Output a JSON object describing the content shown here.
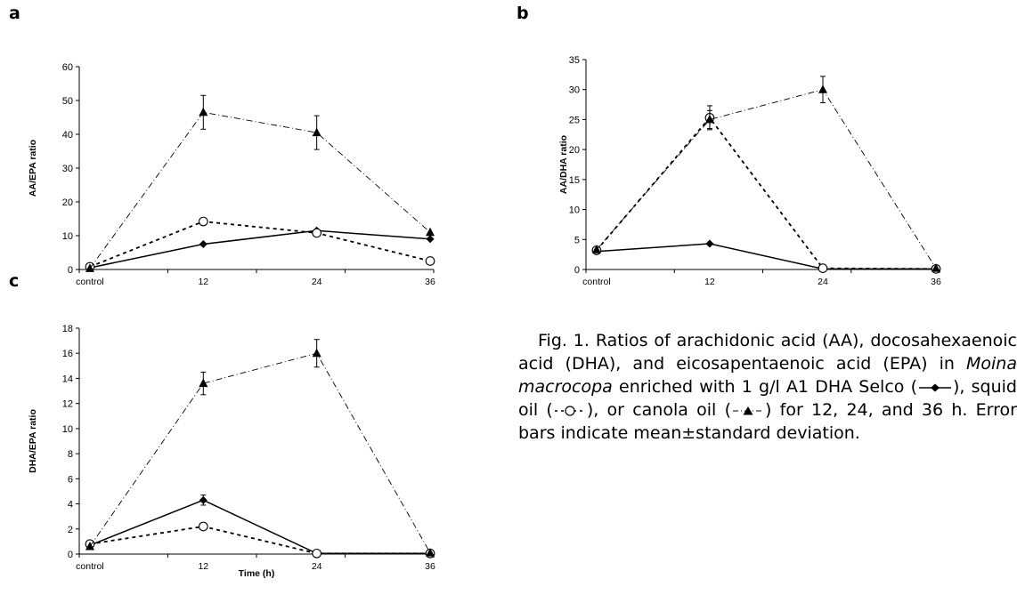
{
  "panels": [
    {
      "letter": "a",
      "chart_data": {
        "type": "line",
        "categories": [
          "control",
          "12",
          "24",
          "36"
        ],
        "ylabel": "AA/EPA ratio",
        "xlabel": "",
        "ylim": [
          0,
          60
        ],
        "yticks": [
          "0",
          "10",
          "20",
          "30",
          "40",
          "50",
          "60"
        ],
        "series": [
          {
            "marker": "diamond",
            "line": "solid",
            "values": [
              0.5,
              7.5,
              11.5,
              9
            ],
            "errors": [
              0,
              0,
              0,
              0
            ]
          },
          {
            "marker": "circle",
            "line": "dash",
            "values": [
              0.8,
              14.2,
              10.8,
              2.5
            ],
            "errors": [
              0,
              0,
              0,
              0
            ]
          },
          {
            "marker": "triangle",
            "line": "dashdot",
            "values": [
              0.3,
              46.5,
              40.5,
              11
            ],
            "errors": [
              0,
              5,
              5,
              0
            ]
          }
        ]
      }
    },
    {
      "letter": "b",
      "chart_data": {
        "type": "line",
        "categories": [
          "control",
          "12",
          "24",
          "36"
        ],
        "ylabel": "AA/DHA ratio",
        "xlabel": "",
        "ylim": [
          0,
          35
        ],
        "yticks": [
          "0",
          "5",
          "10",
          "15",
          "20",
          "25",
          "30",
          "35"
        ],
        "series": [
          {
            "marker": "diamond",
            "line": "solid",
            "values": [
              3.0,
              4.3,
              0.1,
              0.1
            ],
            "errors": [
              0,
              0,
              0,
              0
            ]
          },
          {
            "marker": "circle",
            "line": "dash",
            "values": [
              3.2,
              25.3,
              0.2,
              0.1
            ],
            "errors": [
              0,
              2,
              0,
              0
            ]
          },
          {
            "marker": "triangle",
            "line": "dashdot",
            "values": [
              3.3,
              25.0,
              30.0,
              0.2
            ],
            "errors": [
              0,
              1.5,
              2.2,
              0
            ]
          }
        ]
      }
    },
    {
      "letter": "c",
      "chart_data": {
        "type": "line",
        "categories": [
          "control",
          "12",
          "24",
          "36"
        ],
        "ylabel": "DHA/EPA ratio",
        "xlabel": "Time (h)",
        "ylim": [
          0,
          18
        ],
        "yticks": [
          "0",
          "2",
          "4",
          "6",
          "8",
          "10",
          "12",
          "14",
          "16",
          "18"
        ],
        "series": [
          {
            "marker": "diamond",
            "line": "solid",
            "values": [
              0.7,
              4.3,
              0.05,
              0.05
            ],
            "errors": [
              0,
              0.4,
              0,
              0
            ]
          },
          {
            "marker": "circle",
            "line": "dash",
            "values": [
              0.8,
              2.2,
              0.05,
              0.05
            ],
            "errors": [
              0,
              0,
              0,
              0
            ]
          },
          {
            "marker": "triangle",
            "line": "dashdot",
            "values": [
              0.6,
              13.6,
              16.0,
              0.1
            ],
            "errors": [
              0,
              0.9,
              1.1,
              0
            ]
          }
        ]
      }
    }
  ],
  "caption": {
    "fig_no": "Fig. 1.",
    "part1": "Ratios of arachidonic acid (AA), docosahexaenoic acid (DHA), and eicosapentaenoic acid (EPA) in",
    "species": "Moina macrocopa",
    "part2": "enriched with 1 g/l A1 DHA Selco (",
    "part3": "), squid oil (",
    "part4": "), or canola oil (",
    "part5": ") for 12, 24, and 36 h. Error bars indicate mean±standard deviation."
  }
}
